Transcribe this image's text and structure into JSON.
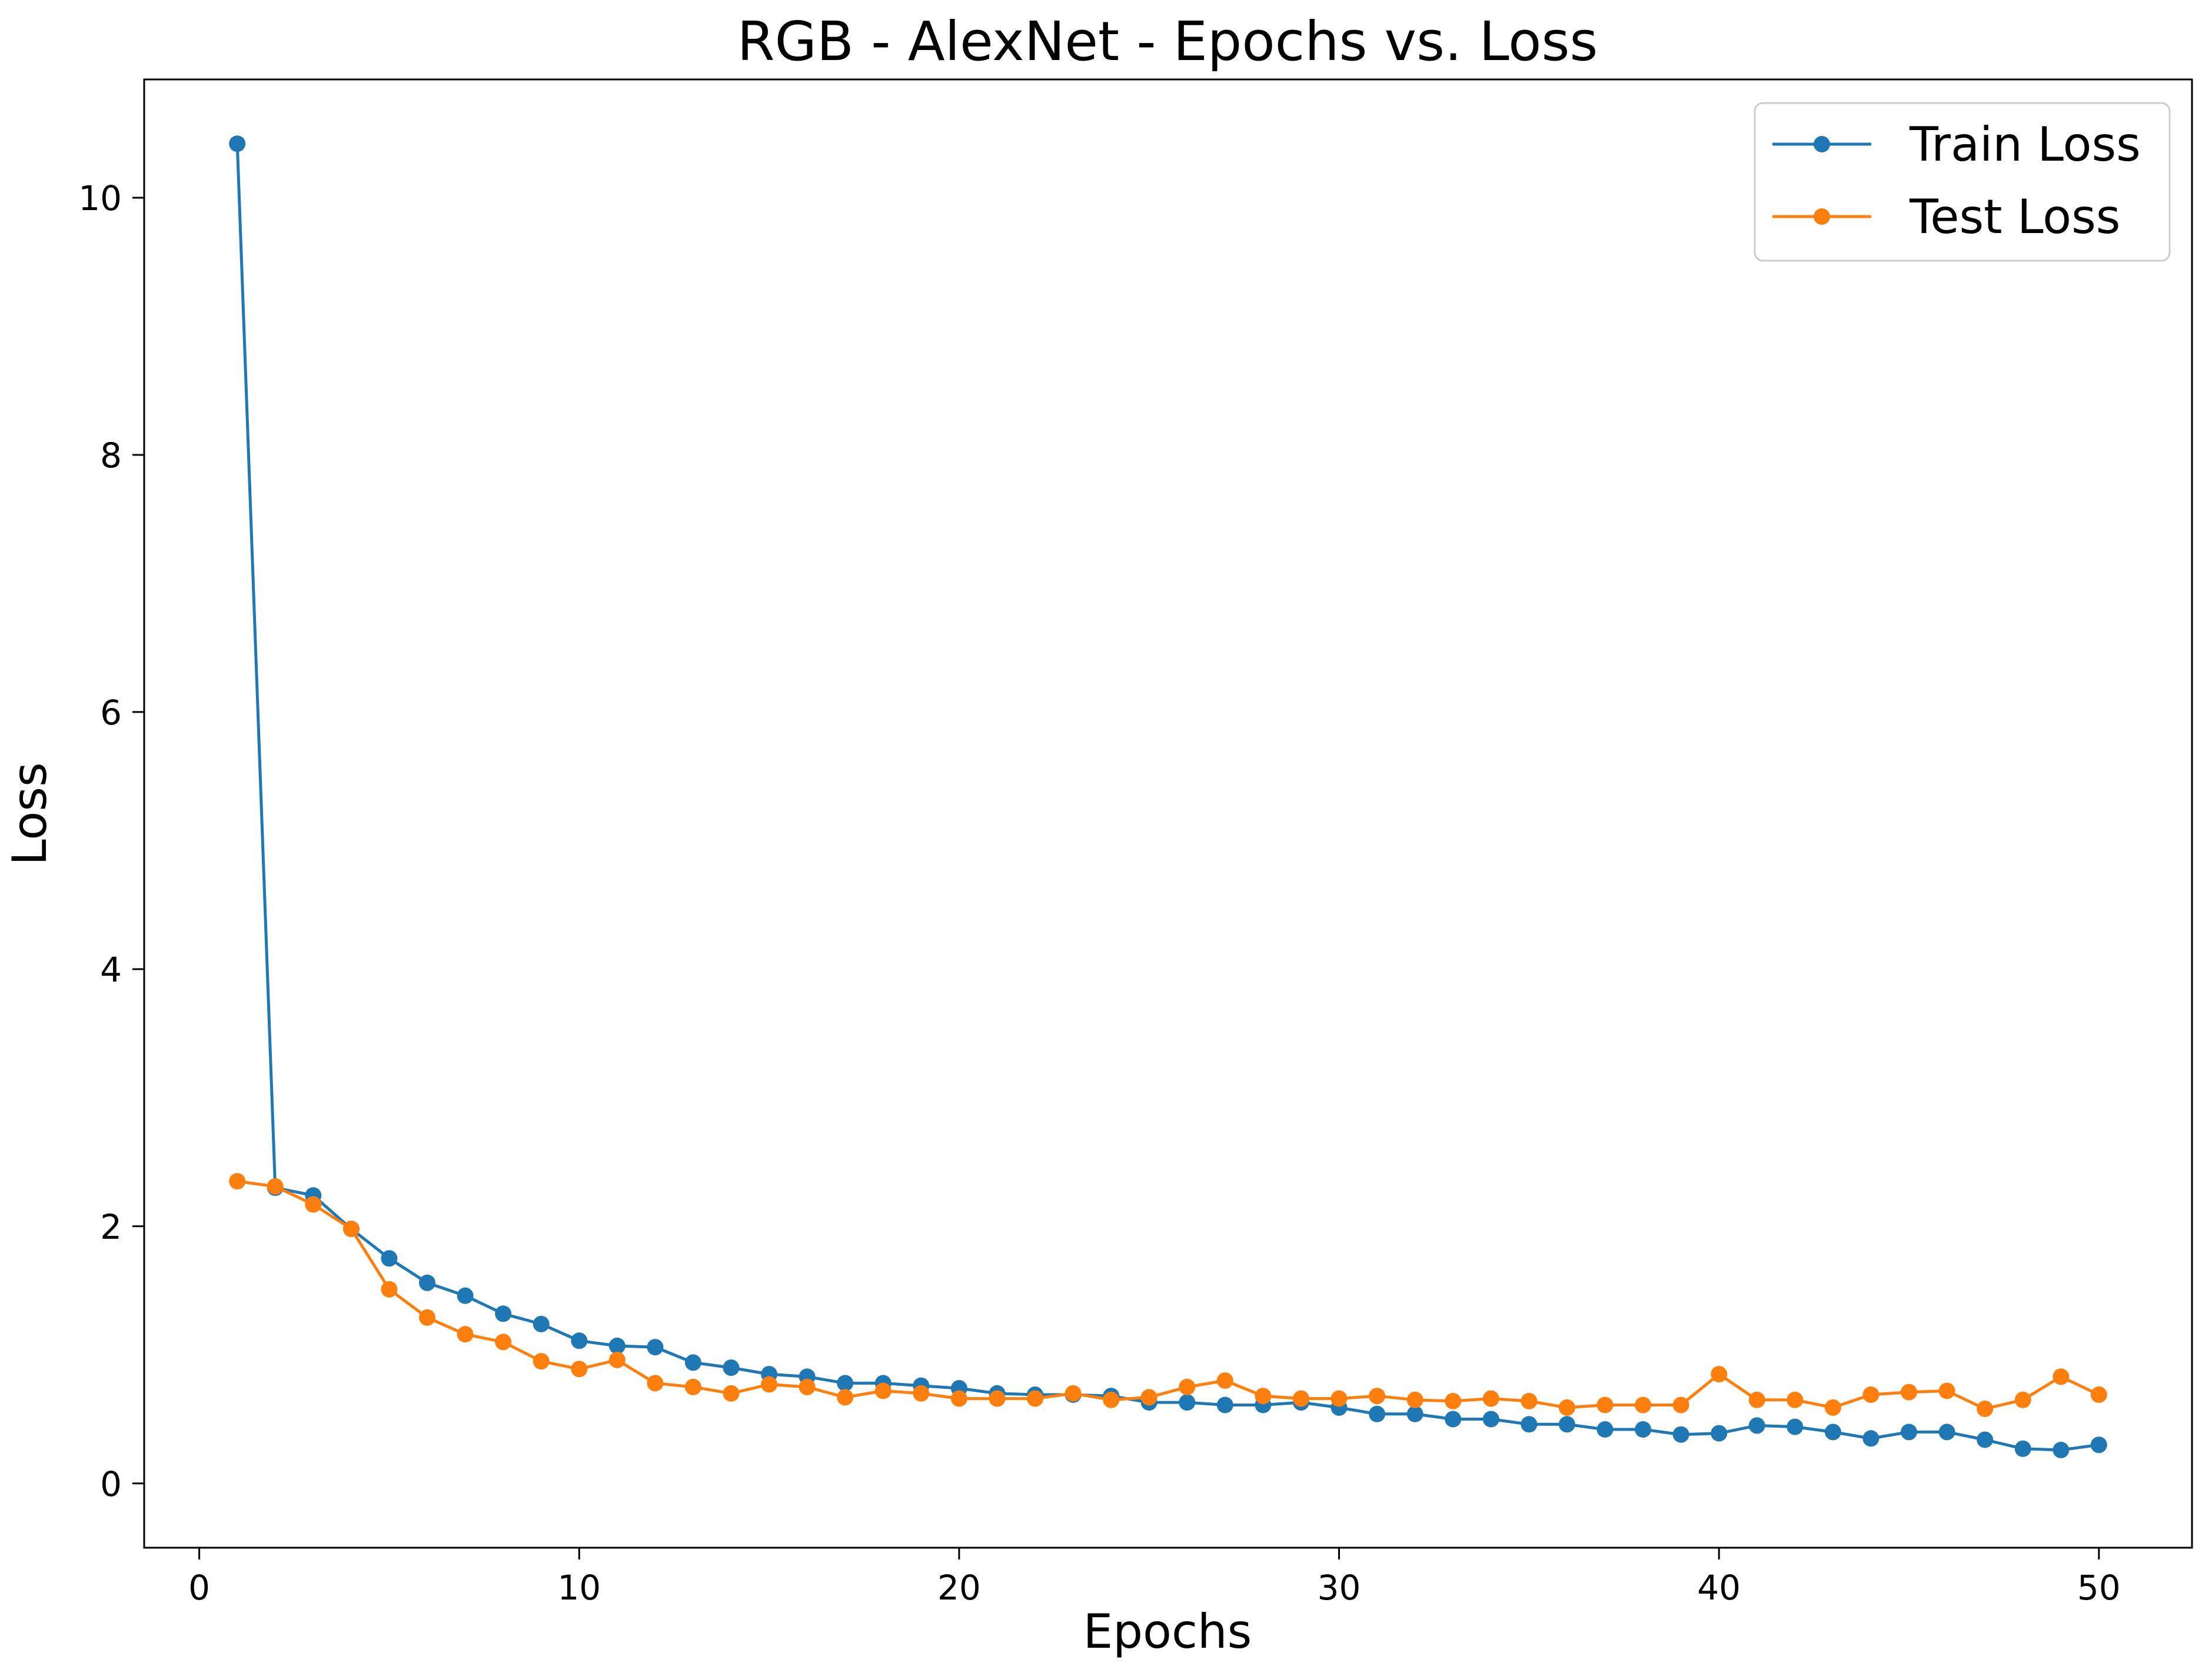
{
  "chart_data": {
    "type": "line",
    "title": "RGB - AlexNet - Epochs vs. Loss",
    "xlabel": "Epochs",
    "ylabel": "Loss",
    "xlim": [
      -1.45,
      52.45
    ],
    "ylim": [
      -0.5,
      10.92
    ],
    "xticks": [
      0,
      10,
      20,
      30,
      40,
      50
    ],
    "yticks": [
      0,
      2,
      4,
      6,
      8,
      10
    ],
    "grid": false,
    "legend": "top-right",
    "x": [
      1,
      2,
      3,
      4,
      5,
      6,
      7,
      8,
      9,
      10,
      11,
      12,
      13,
      14,
      15,
      16,
      17,
      18,
      19,
      20,
      21,
      22,
      23,
      24,
      25,
      26,
      27,
      28,
      29,
      30,
      31,
      32,
      33,
      34,
      35,
      36,
      37,
      38,
      39,
      40,
      41,
      42,
      43,
      44,
      45,
      46,
      47,
      48,
      49,
      50
    ],
    "series": [
      {
        "name": "Train Loss",
        "color": "#1f77b4",
        "values": [
          10.42,
          2.3,
          2.24,
          1.98,
          1.75,
          1.56,
          1.46,
          1.32,
          1.24,
          1.11,
          1.07,
          1.06,
          0.94,
          0.9,
          0.85,
          0.83,
          0.78,
          0.78,
          0.76,
          0.74,
          0.7,
          0.69,
          0.69,
          0.68,
          0.63,
          0.63,
          0.61,
          0.61,
          0.63,
          0.59,
          0.54,
          0.54,
          0.5,
          0.5,
          0.46,
          0.46,
          0.42,
          0.42,
          0.38,
          0.39,
          0.45,
          0.44,
          0.4,
          0.35,
          0.4,
          0.4,
          0.34,
          0.27,
          0.26,
          0.3
        ]
      },
      {
        "name": "Test Loss",
        "color": "#ff7f0e",
        "values": [
          2.35,
          2.31,
          2.17,
          1.98,
          1.51,
          1.29,
          1.16,
          1.1,
          0.95,
          0.89,
          0.96,
          0.78,
          0.75,
          0.7,
          0.77,
          0.75,
          0.67,
          0.72,
          0.7,
          0.66,
          0.66,
          0.66,
          0.7,
          0.65,
          0.67,
          0.75,
          0.8,
          0.68,
          0.66,
          0.66,
          0.68,
          0.65,
          0.64,
          0.66,
          0.64,
          0.59,
          0.61,
          0.61,
          0.61,
          0.85,
          0.65,
          0.65,
          0.59,
          0.69,
          0.71,
          0.72,
          0.58,
          0.65,
          0.83,
          0.69
        ]
      }
    ]
  }
}
